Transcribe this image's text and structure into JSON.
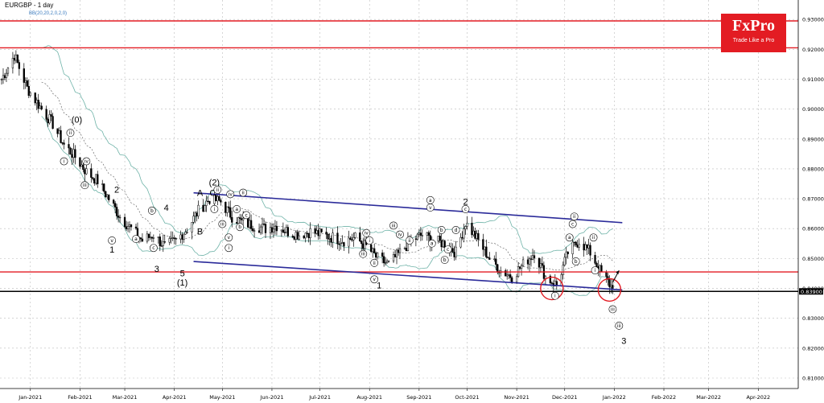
{
  "header": {
    "symbol_title": "EURGBP - 1 day",
    "indicator_label": "BB(20,20,2,0,2,0)"
  },
  "logo": {
    "main": "FxPro",
    "tagline": "Trade Like a Pro"
  },
  "colors": {
    "bull": "#1a9a3a",
    "bear": "#d01010",
    "candle": "#000000",
    "bollinger": "#6fb3a8",
    "midline": "#555555",
    "channel": "#2b2b9a",
    "level": "#e31c23",
    "support": "#000000",
    "grid": "#bbbbbb"
  },
  "chart_data": {
    "type": "candlestick",
    "title": "EURGBP - 1 day",
    "xlabel": "",
    "ylabel": "",
    "ylim": [
      0.8065,
      0.9365
    ],
    "xlim": [
      "2020-12-13",
      "2022-04-26"
    ],
    "grid": true,
    "y_ticks": [
      "0.93000",
      "0.92000",
      "0.91000",
      "0.90000",
      "0.89000",
      "0.88000",
      "0.87000",
      "0.86000",
      "0.85000",
      "0.84000",
      "0.83000",
      "0.82000",
      "0.81000"
    ],
    "x_ticks": [
      {
        "date": "2021-01-01",
        "label": "Jan-2021"
      },
      {
        "date": "2021-02-01",
        "label": "Feb-2021"
      },
      {
        "date": "2021-03-01",
        "label": "Mar-2021"
      },
      {
        "date": "2021-04-01",
        "label": "Apr-2021"
      },
      {
        "date": "2021-05-01",
        "label": "May-2021"
      },
      {
        "date": "2021-06-01",
        "label": "Jun-2021"
      },
      {
        "date": "2021-07-01",
        "label": "Jul-2021"
      },
      {
        "date": "2021-08-01",
        "label": "Aug-2021"
      },
      {
        "date": "2021-09-01",
        "label": "Sep-2021"
      },
      {
        "date": "2021-10-01",
        "label": "Oct-2021"
      },
      {
        "date": "2021-11-01",
        "label": "Nov-2021"
      },
      {
        "date": "2021-12-01",
        "label": "Dec-2021"
      },
      {
        "date": "2022-01-01",
        "label": "Jan-2022"
      },
      {
        "date": "2022-02-01",
        "label": "Feb-2022"
      },
      {
        "date": "2022-03-01",
        "label": "Mar-2022"
      },
      {
        "date": "2022-04-01",
        "label": "Apr-2022"
      }
    ],
    "current_price": "0.83900",
    "price_path": [
      [
        "2020-12-14",
        0.91
      ],
      [
        "2020-12-22",
        0.918
      ],
      [
        "2020-12-30",
        0.907
      ],
      [
        "2021-01-08",
        0.9
      ],
      [
        "2021-01-15",
        0.895
      ],
      [
        "2021-01-22",
        0.888
      ],
      [
        "2021-01-29",
        0.884
      ],
      [
        "2021-02-05",
        0.879
      ],
      [
        "2021-02-12",
        0.876
      ],
      [
        "2021-02-19",
        0.87
      ],
      [
        "2021-02-26",
        0.864
      ],
      [
        "2021-03-05",
        0.86
      ],
      [
        "2021-03-12",
        0.856
      ],
      [
        "2021-03-19",
        0.858
      ],
      [
        "2021-03-26",
        0.854
      ],
      [
        "2021-04-02",
        0.856
      ],
      [
        "2021-04-09",
        0.86
      ],
      [
        "2021-04-16",
        0.866
      ],
      [
        "2021-04-23",
        0.87
      ],
      [
        "2021-04-30",
        0.869
      ],
      [
        "2021-05-07",
        0.864
      ],
      [
        "2021-05-14",
        0.862
      ],
      [
        "2021-05-21",
        0.861
      ],
      [
        "2021-05-28",
        0.86
      ],
      [
        "2021-06-04",
        0.861
      ],
      [
        "2021-06-11",
        0.859
      ],
      [
        "2021-06-18",
        0.858
      ],
      [
        "2021-06-25",
        0.859
      ],
      [
        "2021-07-02",
        0.858
      ],
      [
        "2021-07-09",
        0.857
      ],
      [
        "2021-07-16",
        0.856
      ],
      [
        "2021-07-23",
        0.857
      ],
      [
        "2021-07-30",
        0.854
      ],
      [
        "2021-08-06",
        0.85
      ],
      [
        "2021-08-13",
        0.848
      ],
      [
        "2021-08-20",
        0.852
      ],
      [
        "2021-08-27",
        0.856
      ],
      [
        "2021-09-03",
        0.858
      ],
      [
        "2021-09-10",
        0.856
      ],
      [
        "2021-09-17",
        0.855
      ],
      [
        "2021-09-24",
        0.852
      ],
      [
        "2021-09-30",
        0.862
      ],
      [
        "2021-10-08",
        0.856
      ],
      [
        "2021-10-15",
        0.85
      ],
      [
        "2021-10-22",
        0.846
      ],
      [
        "2021-10-29",
        0.844
      ],
      [
        "2021-11-05",
        0.848
      ],
      [
        "2021-11-12",
        0.852
      ],
      [
        "2021-11-19",
        0.844
      ],
      [
        "2021-11-26",
        0.841
      ],
      [
        "2021-12-03",
        0.852
      ],
      [
        "2021-12-10",
        0.856
      ],
      [
        "2021-12-17",
        0.852
      ],
      [
        "2021-12-24",
        0.845
      ],
      [
        "2021-12-31",
        0.84
      ]
    ],
    "horizontal_levels": [
      {
        "kind": "resistance",
        "value": 0.9295
      },
      {
        "kind": "resistance",
        "value": 0.9205
      },
      {
        "kind": "support",
        "value": 0.8455
      },
      {
        "kind": "support-black",
        "value": 0.839
      }
    ],
    "channel_lines": [
      {
        "from": [
          "2021-04-13",
          0.872
        ],
        "to": [
          "2022-01-06",
          0.862
        ]
      },
      {
        "from": [
          "2021-04-13",
          0.849
        ],
        "to": [
          "2022-01-06",
          0.8395
        ]
      }
    ],
    "circles": [
      {
        "center": [
          "2021-11-23",
          0.84
        ]
      },
      {
        "center": [
          "2021-12-29",
          0.8395
        ]
      }
    ],
    "arrow": {
      "from": [
        "2021-12-31",
        0.842
      ],
      "to": [
        "2022-01-04",
        0.846
      ]
    },
    "wave_labels": [
      {
        "t": "(0)",
        "date": "2021-01-30",
        "v": 0.8955,
        "big": true
      },
      {
        "t": "2",
        "date": "2021-02-24",
        "v": 0.872,
        "big": true
      },
      {
        "t": "1",
        "date": "2021-02-21",
        "v": 0.852,
        "big": true
      },
      {
        "t": "4",
        "date": "2021-03-27",
        "v": 0.866,
        "big": true
      },
      {
        "t": "3",
        "date": "2021-03-21",
        "v": 0.8455,
        "big": true
      },
      {
        "t": "5",
        "date": "2021-04-06",
        "v": 0.844,
        "big": true
      },
      {
        "t": "(1)",
        "date": "2021-04-06",
        "v": 0.841,
        "big": true
      },
      {
        "t": "A",
        "date": "2021-04-17",
        "v": 0.871,
        "big": true
      },
      {
        "t": "B",
        "date": "2021-04-17",
        "v": 0.858,
        "big": true
      },
      {
        "t": "C",
        "date": "2021-04-25",
        "v": 0.871,
        "big": true
      },
      {
        "t": "(2)",
        "date": "2021-04-26",
        "v": 0.8745,
        "big": true
      },
      {
        "t": "2",
        "date": "2021-09-30",
        "v": 0.868,
        "big": true
      },
      {
        "t": "1",
        "date": "2021-08-07",
        "v": 0.84,
        "big": true
      },
      {
        "t": "3",
        "date": "2022-01-07",
        "v": 0.8215,
        "big": true
      },
      {
        "t": "ii",
        "date": "2021-01-26",
        "v": 0.8915
      },
      {
        "t": "i",
        "date": "2021-01-22",
        "v": 0.882
      },
      {
        "t": "iv",
        "date": "2021-02-05",
        "v": 0.882
      },
      {
        "t": "iii",
        "date": "2021-02-04",
        "v": 0.874
      },
      {
        "t": "v",
        "date": "2021-02-21",
        "v": 0.8555
      },
      {
        "t": "b",
        "date": "2021-03-18",
        "v": 0.8655
      },
      {
        "t": "a",
        "date": "2021-03-08",
        "v": 0.856
      },
      {
        "t": "c",
        "date": "2021-03-19",
        "v": 0.853
      },
      {
        "t": "ii",
        "date": "2021-04-28",
        "v": 0.8725
      },
      {
        "t": "iv",
        "date": "2021-05-06",
        "v": 0.871
      },
      {
        "t": "ii",
        "date": "2021-05-14",
        "v": 0.8715
      },
      {
        "t": "i",
        "date": "2021-04-26",
        "v": 0.866
      },
      {
        "t": "iii",
        "date": "2021-05-01",
        "v": 0.861
      },
      {
        "t": "a",
        "date": "2021-05-10",
        "v": 0.866
      },
      {
        "t": "b",
        "date": "2021-05-12",
        "v": 0.86
      },
      {
        "t": "c",
        "date": "2021-05-16",
        "v": 0.864
      },
      {
        "t": "v",
        "date": "2021-05-05",
        "v": 0.8565
      },
      {
        "t": "i",
        "date": "2021-05-05",
        "v": 0.853
      },
      {
        "t": "iv",
        "date": "2021-07-30",
        "v": 0.858
      },
      {
        "t": "iii",
        "date": "2021-07-28",
        "v": 0.851
      },
      {
        "t": "ii",
        "date": "2021-08-04",
        "v": 0.848
      },
      {
        "t": "i",
        "date": "2021-08-01",
        "v": 0.8555
      },
      {
        "t": "v",
        "date": "2021-08-04",
        "v": 0.8425
      },
      {
        "t": "iii",
        "date": "2021-08-16",
        "v": 0.8605
      },
      {
        "t": "iv",
        "date": "2021-08-20",
        "v": 0.8575
      },
      {
        "t": "ii",
        "date": "2021-08-26",
        "v": 0.8555
      },
      {
        "t": "a",
        "date": "2021-09-08",
        "v": 0.869
      },
      {
        "t": "v",
        "date": "2021-09-08",
        "v": 0.8665
      },
      {
        "t": "a",
        "date": "2021-09-09",
        "v": 0.8545
      },
      {
        "t": "b",
        "date": "2021-09-15",
        "v": 0.859
      },
      {
        "t": "c",
        "date": "2021-09-19",
        "v": 0.8525
      },
      {
        "t": "b",
        "date": "2021-09-17",
        "v": 0.849
      },
      {
        "t": "c",
        "date": "2021-09-30",
        "v": 0.866
      },
      {
        "t": "d",
        "date": "2021-09-24",
        "v": 0.859
      },
      {
        "t": "i",
        "date": "2021-11-25",
        "v": 0.837
      },
      {
        "t": "ii",
        "date": "2021-12-07",
        "v": 0.8635
      },
      {
        "t": "c",
        "date": "2021-12-06",
        "v": 0.861
      },
      {
        "t": "a",
        "date": "2021-12-04",
        "v": 0.8565
      },
      {
        "t": "b",
        "date": "2021-12-08",
        "v": 0.8485
      },
      {
        "t": "ii",
        "date": "2021-12-19",
        "v": 0.8565
      },
      {
        "t": "i",
        "date": "2021-12-20",
        "v": 0.8455
      },
      {
        "t": "iii",
        "date": "2021-12-31",
        "v": 0.8325
      },
      {
        "t": "iii",
        "date": "2022-01-04",
        "v": 0.827
      }
    ]
  }
}
